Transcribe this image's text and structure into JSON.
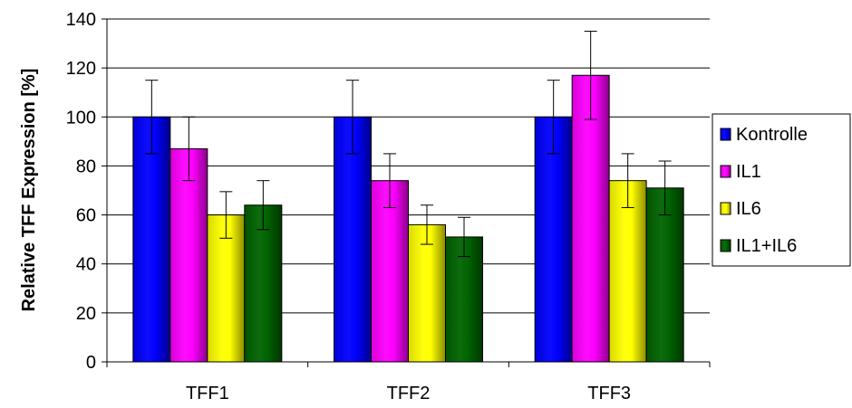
{
  "chart_data": {
    "type": "bar",
    "title": "",
    "xlabel": "",
    "ylabel": "Relative TFF Expression [%]",
    "ylim": [
      0,
      140
    ],
    "yticks": [
      0,
      20,
      40,
      60,
      80,
      100,
      120,
      140
    ],
    "grid": true,
    "legend": "right",
    "categories": [
      "TFF1",
      "TFF2",
      "TFF3"
    ],
    "series": [
      {
        "name": "Kontrolle",
        "color": "#0000ff",
        "values": [
          100,
          100,
          100
        ],
        "error": [
          15,
          15,
          15
        ]
      },
      {
        "name": "IL1",
        "color": "#ff00ff",
        "values": [
          87,
          74,
          117
        ],
        "error": [
          13,
          11,
          18
        ]
      },
      {
        "name": "IL6",
        "color": "#ffff00",
        "values": [
          60,
          56,
          74
        ],
        "error": [
          9.5,
          8,
          11
        ]
      },
      {
        "name": "IL1+IL6",
        "color": "#006400",
        "values": [
          64,
          51,
          71
        ],
        "error": [
          10,
          8,
          11
        ]
      }
    ]
  }
}
